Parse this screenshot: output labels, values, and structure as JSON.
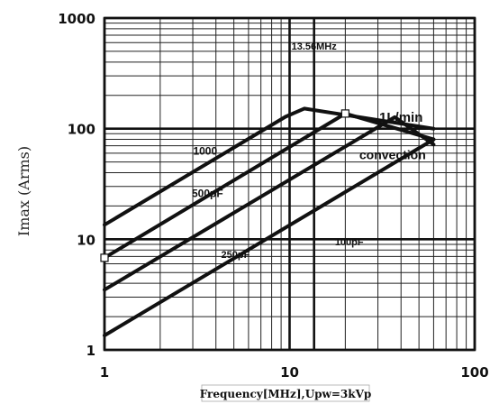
{
  "chart_data": {
    "type": "line",
    "x_scale": "log",
    "y_scale": "log",
    "xlim": [
      1,
      100
    ],
    "ylim": [
      1,
      1000
    ],
    "xlabel": "Frequency[MHz],Upw=3kVp",
    "ylabel": "Imax (Arms)",
    "x_ticks": [
      "1",
      "10",
      "100"
    ],
    "y_ticks": [
      "1",
      "10",
      "100",
      "1000"
    ],
    "grid": true,
    "series": [
      {
        "name": "1000",
        "x": [
          1,
          9.5,
          12,
          60
        ],
        "y": [
          13.5,
          128,
          152,
          100
        ]
      },
      {
        "name": "500pF",
        "x": [
          1,
          20,
          60
        ],
        "y": [
          6.8,
          137,
          80
        ]
      },
      {
        "name": "250pF",
        "x": [
          1,
          37,
          60
        ],
        "y": [
          3.5,
          127,
          72
        ]
      },
      {
        "name": "100pF",
        "x": [
          1,
          60
        ],
        "y": [
          1.35,
          80
        ]
      }
    ],
    "annotations": [
      {
        "text": "13.56MHz",
        "x": 13.56,
        "y": 520
      },
      {
        "text": "1L/min",
        "x": 40,
        "y": 115
      },
      {
        "text": "convection",
        "x": 36,
        "y": 53
      },
      {
        "text": "1000",
        "x": 3.5,
        "y": 58
      },
      {
        "text": "500pF",
        "x": 3.6,
        "y": 24
      },
      {
        "text": "250pF",
        "x": 5.1,
        "y": 6.8
      },
      {
        "text": "100pF",
        "x": 21,
        "y": 8.8
      }
    ],
    "markers": [
      {
        "x": 1,
        "y": 6.8
      },
      {
        "x": 20,
        "y": 137
      }
    ],
    "vertical_reference": {
      "x": 13.56
    }
  }
}
